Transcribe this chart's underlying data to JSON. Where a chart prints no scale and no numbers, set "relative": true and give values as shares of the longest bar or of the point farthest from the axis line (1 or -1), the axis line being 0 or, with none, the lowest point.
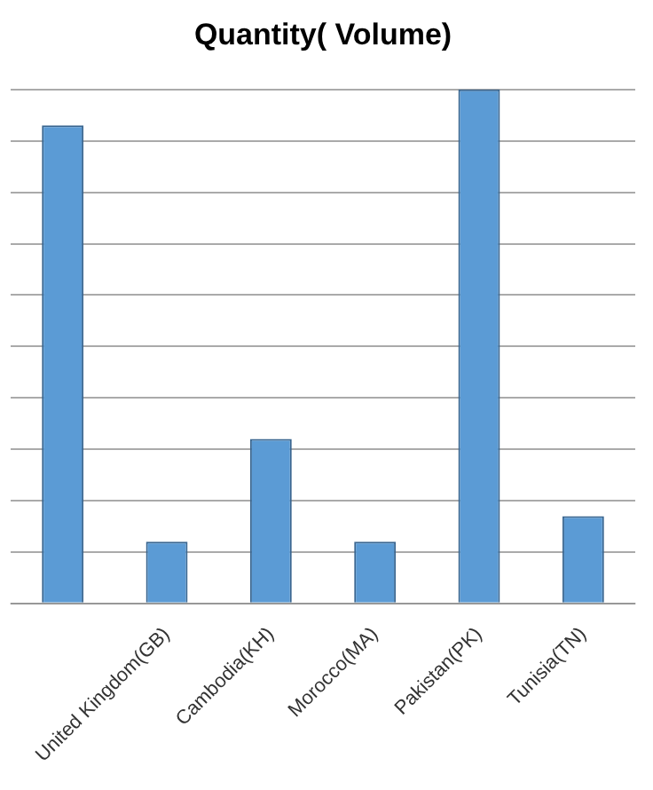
{
  "chart_data": {
    "type": "bar",
    "title": "Quantity( Volume)",
    "relative": true,
    "categories": [
      null,
      "United Kingdom(GB)",
      "Cambodia(KH)",
      "Morocco(MA)",
      "Pakistan(PK)",
      "Tunisia(TN)"
    ],
    "values": [
      0.93,
      0.12,
      0.32,
      0.12,
      1,
      0.17
    ],
    "color": "#5b9bd5",
    "grid": "y",
    "legend": false
  }
}
